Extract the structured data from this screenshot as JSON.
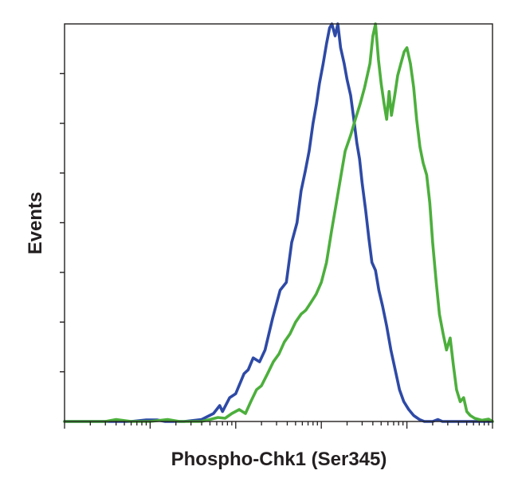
{
  "chart_data": {
    "type": "line",
    "title": "",
    "xlabel": "Phospho-Chk1 (Ser345)",
    "ylabel": "Events",
    "x_scale": "log",
    "xlim": [
      1,
      100000
    ],
    "ylim": [
      0,
      100
    ],
    "grid": false,
    "legend": "none",
    "series": [
      {
        "color": "#2e4aa6",
        "points": [
          [
            1,
            0
          ],
          [
            6,
            0
          ],
          [
            9,
            0.4
          ],
          [
            12,
            0.4
          ],
          [
            15,
            0
          ],
          [
            25,
            0
          ],
          [
            40,
            0.5
          ],
          [
            55,
            2
          ],
          [
            65,
            4
          ],
          [
            70,
            2.5
          ],
          [
            85,
            6
          ],
          [
            100,
            7
          ],
          [
            125,
            12
          ],
          [
            140,
            13
          ],
          [
            160,
            16
          ],
          [
            190,
            15
          ],
          [
            220,
            18
          ],
          [
            270,
            26
          ],
          [
            330,
            33
          ],
          [
            390,
            35
          ],
          [
            450,
            45
          ],
          [
            520,
            50
          ],
          [
            580,
            58
          ],
          [
            650,
            63
          ],
          [
            720,
            68
          ],
          [
            800,
            75
          ],
          [
            880,
            80
          ],
          [
            950,
            85
          ],
          [
            1050,
            90
          ],
          [
            1150,
            95
          ],
          [
            1250,
            99
          ],
          [
            1330,
            100
          ],
          [
            1450,
            97
          ],
          [
            1560,
            100
          ],
          [
            1680,
            94
          ],
          [
            1850,
            90
          ],
          [
            2000,
            86
          ],
          [
            2200,
            82
          ],
          [
            2400,
            76
          ],
          [
            2600,
            70
          ],
          [
            2800,
            66
          ],
          [
            3000,
            60
          ],
          [
            3300,
            53
          ],
          [
            3600,
            46
          ],
          [
            3900,
            40
          ],
          [
            4300,
            38
          ],
          [
            4700,
            33
          ],
          [
            5200,
            29
          ],
          [
            5800,
            24
          ],
          [
            6500,
            18
          ],
          [
            7300,
            13
          ],
          [
            8200,
            8
          ],
          [
            9200,
            5
          ],
          [
            10500,
            3
          ],
          [
            12000,
            1.5
          ],
          [
            14000,
            0.5
          ],
          [
            16000,
            0
          ],
          [
            20000,
            0
          ],
          [
            23000,
            0.5
          ],
          [
            26000,
            0
          ],
          [
            100000,
            0
          ]
        ]
      },
      {
        "color": "#4caf3c",
        "points": [
          [
            1,
            0
          ],
          [
            3,
            0
          ],
          [
            4,
            0.5
          ],
          [
            6,
            0
          ],
          [
            10,
            0
          ],
          [
            16,
            0.5
          ],
          [
            22,
            0
          ],
          [
            40,
            0
          ],
          [
            50,
            0.5
          ],
          [
            62,
            1
          ],
          [
            75,
            0.8
          ],
          [
            90,
            2
          ],
          [
            110,
            3
          ],
          [
            130,
            2
          ],
          [
            150,
            5
          ],
          [
            175,
            8
          ],
          [
            200,
            9
          ],
          [
            235,
            12
          ],
          [
            275,
            15
          ],
          [
            320,
            17
          ],
          [
            370,
            20
          ],
          [
            430,
            22
          ],
          [
            500,
            25
          ],
          [
            580,
            27
          ],
          [
            660,
            28
          ],
          [
            760,
            30
          ],
          [
            870,
            32
          ],
          [
            1000,
            35
          ],
          [
            1150,
            40
          ],
          [
            1320,
            48
          ],
          [
            1500,
            55
          ],
          [
            1700,
            62
          ],
          [
            1900,
            68
          ],
          [
            2200,
            72
          ],
          [
            2500,
            76
          ],
          [
            2850,
            80
          ],
          [
            3200,
            84
          ],
          [
            3700,
            90
          ],
          [
            4000,
            97
          ],
          [
            4300,
            100
          ],
          [
            4650,
            91
          ],
          [
            5000,
            85
          ],
          [
            5400,
            80
          ],
          [
            5800,
            76
          ],
          [
            6200,
            83
          ],
          [
            6600,
            77
          ],
          [
            7200,
            82
          ],
          [
            7800,
            87
          ],
          [
            8500,
            90
          ],
          [
            9300,
            93
          ],
          [
            10000,
            94
          ],
          [
            11000,
            90
          ],
          [
            12000,
            84
          ],
          [
            13000,
            76
          ],
          [
            14200,
            69
          ],
          [
            15500,
            65
          ],
          [
            17000,
            62
          ],
          [
            18500,
            55
          ],
          [
            20000,
            45
          ],
          [
            22000,
            35
          ],
          [
            24000,
            27
          ],
          [
            26500,
            22
          ],
          [
            29000,
            18
          ],
          [
            32000,
            21
          ],
          [
            35000,
            14
          ],
          [
            38000,
            8
          ],
          [
            42000,
            5
          ],
          [
            46000,
            6
          ],
          [
            50000,
            2.5
          ],
          [
            55000,
            1.5
          ],
          [
            62000,
            0.8
          ],
          [
            75000,
            0.3
          ],
          [
            90000,
            0.6
          ],
          [
            100000,
            0
          ]
        ]
      }
    ]
  }
}
